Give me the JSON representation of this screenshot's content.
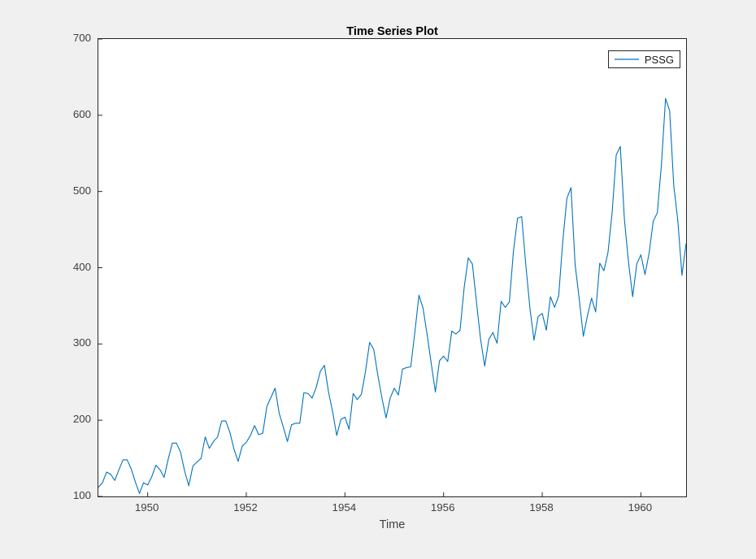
{
  "figure": {
    "bg_color": "#f0f0f0",
    "axes_bg": "#ffffff",
    "axis_color": "#262626",
    "tick_label_color": "#3f3f3f"
  },
  "chart_data": {
    "type": "line",
    "title": "Time Series Plot",
    "xlabel": "Time",
    "ylabel": "",
    "grid": false,
    "legend": {
      "position": "northeast",
      "entries": [
        "PSSG"
      ]
    },
    "line_color": "#0072BD",
    "line_width": 1.1,
    "x_start_year": 1949,
    "x_step": "monthly",
    "xlim": [
      1949,
      1960.9167
    ],
    "ylim": [
      100,
      700
    ],
    "xticks": [
      1950,
      1952,
      1954,
      1956,
      1958,
      1960
    ],
    "yticks": [
      100,
      200,
      300,
      400,
      500,
      600,
      700
    ],
    "series": [
      {
        "name": "PSSG",
        "values": [
          112,
          118,
          132,
          129,
          121,
          135,
          148,
          148,
          136,
          119,
          104,
          118,
          115,
          126,
          141,
          135,
          125,
          149,
          170,
          170,
          158,
          133,
          114,
          140,
          145,
          150,
          178,
          163,
          172,
          178,
          199,
          199,
          184,
          162,
          146,
          166,
          171,
          180,
          193,
          181,
          183,
          218,
          230,
          242,
          209,
          191,
          172,
          194,
          196,
          196,
          236,
          235,
          229,
          243,
          264,
          272,
          237,
          211,
          180,
          201,
          204,
          188,
          235,
          227,
          234,
          264,
          302,
          293,
          259,
          229,
          203,
          229,
          242,
          233,
          267,
          269,
          270,
          315,
          364,
          347,
          312,
          274,
          237,
          278,
          284,
          277,
          317,
          313,
          318,
          374,
          413,
          405,
          355,
          306,
          271,
          306,
          315,
          301,
          356,
          348,
          355,
          422,
          465,
          467,
          404,
          347,
          305,
          336,
          340,
          318,
          362,
          348,
          363,
          435,
          491,
          505,
          404,
          359,
          310,
          337,
          360,
          342,
          406,
          396,
          420,
          472,
          548,
          559,
          463,
          407,
          362,
          405,
          417,
          391,
          419,
          461,
          472,
          535,
          622,
          606,
          508,
          461,
          390,
          432
        ]
      }
    ]
  }
}
